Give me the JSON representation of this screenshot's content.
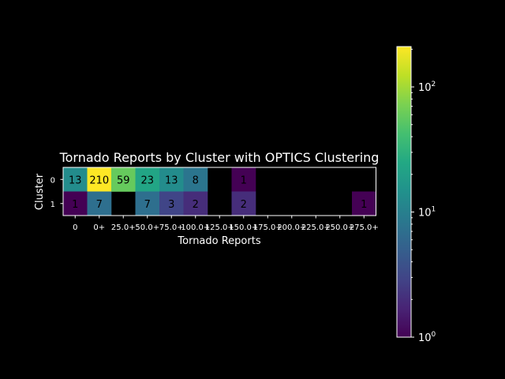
{
  "chart_data": {
    "type": "heatmap",
    "title": "Tornado Reports by Cluster with OPTICS Clustering",
    "xlabel": "Tornado Reports",
    "ylabel": "Cluster",
    "x_categories": [
      "0",
      "0+",
      "25.0+",
      "50.0+",
      "75.0+",
      "100.0+",
      "125.0+",
      "150.0+",
      "175.0+",
      "200.0+",
      "225.0+",
      "250.0+",
      "275.0+"
    ],
    "y_categories": [
      "0",
      "1"
    ],
    "values": [
      [
        13,
        210,
        59,
        23,
        13,
        8,
        null,
        1,
        null,
        null,
        null,
        null,
        null
      ],
      [
        1,
        7,
        null,
        7,
        3,
        2,
        null,
        2,
        null,
        null,
        null,
        null,
        1
      ]
    ],
    "annotations": [
      [
        "13",
        "210",
        "59",
        "23",
        "13",
        "8",
        "",
        "1",
        "",
        "",
        "",
        "",
        ""
      ],
      [
        "1",
        "7",
        "",
        "7",
        "3",
        "2",
        "",
        "2",
        "",
        "",
        "",
        "",
        "1"
      ]
    ],
    "colorbar": {
      "scale": "log",
      "range": [
        1,
        210
      ],
      "colormap": "viridis",
      "ticks": [
        {
          "value": 1,
          "base": "10",
          "exp": "0"
        },
        {
          "value": 10,
          "base": "10",
          "exp": "1"
        },
        {
          "value": 100,
          "base": "10",
          "exp": "2"
        }
      ]
    },
    "grid": false,
    "legend": "colorbar-right"
  },
  "colors": {
    "background": "#000000",
    "foreground": "#ffffff"
  }
}
